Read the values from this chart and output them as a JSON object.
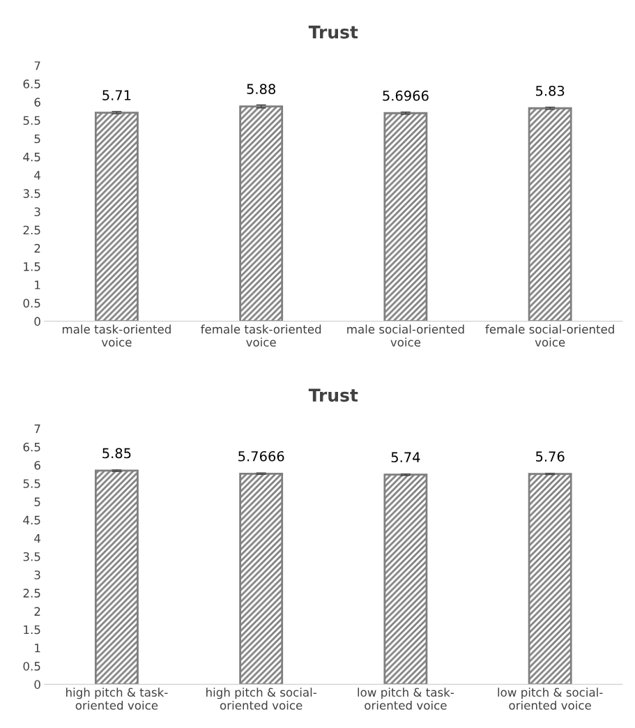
{
  "chart_data": [
    {
      "type": "bar",
      "title": "Trust",
      "categories": [
        "male task-oriented\nvoice",
        "female task-oriented\nvoice",
        "male social-oriented\nvoice",
        "female social-oriented\nvoice"
      ],
      "values": [
        5.71,
        5.88,
        5.6966,
        5.83
      ],
      "errors": [
        0.03,
        0.04,
        0.03,
        0.03
      ],
      "color": "#7f7f7f",
      "data_labels": true,
      "ylim": [
        0,
        7
      ],
      "yticks": [
        0,
        0.5,
        1,
        1.5,
        2,
        2.5,
        3,
        3.5,
        4,
        4.5,
        5,
        5.5,
        6,
        6.5,
        7
      ],
      "grid": false,
      "legend": false
    },
    {
      "type": "bar",
      "title": "Trust",
      "categories": [
        "high pitch & task-\noriented voice",
        "high pitch & social-\noriented voice",
        "low pitch & task-\noriented voice",
        "low pitch & social-\noriented voice"
      ],
      "values": [
        5.85,
        5.7666,
        5.74,
        5.76
      ],
      "errors": [
        0.02,
        0.02,
        0.02,
        0.02
      ],
      "color": "#7f7f7f",
      "data_labels": true,
      "ylim": [
        0,
        7
      ],
      "yticks": [
        0,
        0.5,
        1,
        1.5,
        2,
        2.5,
        3,
        3.5,
        4,
        4.5,
        5,
        5.5,
        6,
        6.5,
        7
      ],
      "grid": false,
      "legend": false
    }
  ]
}
